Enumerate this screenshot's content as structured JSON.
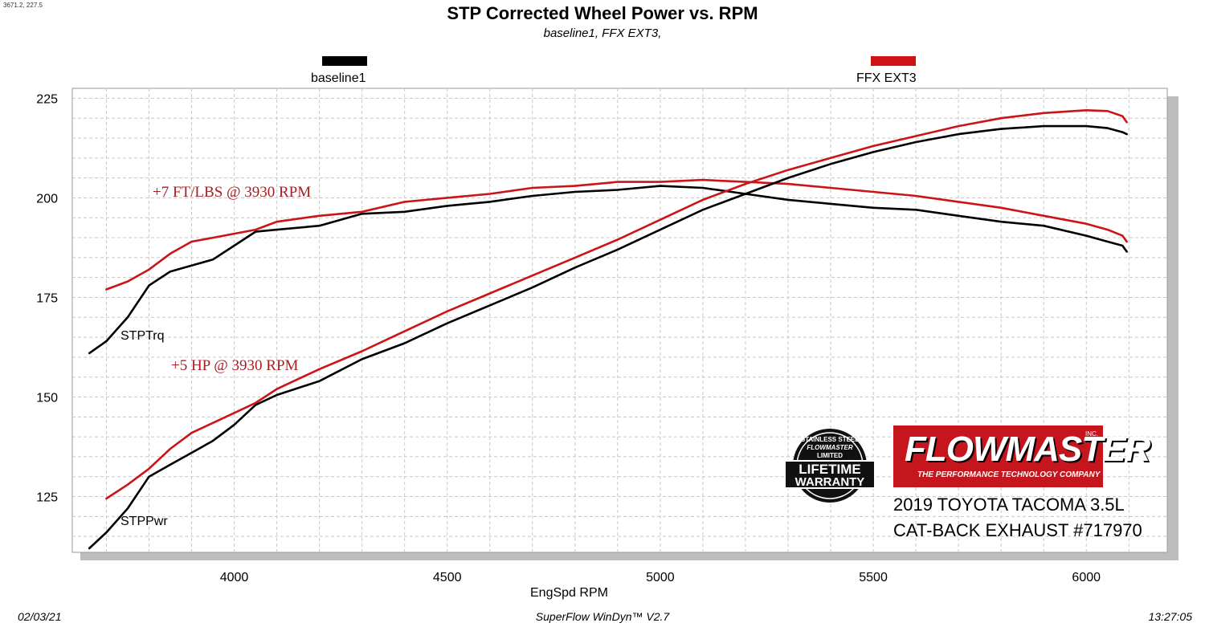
{
  "header": {
    "coords": "3671.2, 227.5",
    "title": "STP Corrected Wheel Power vs. RPM",
    "subtitle": "baseline1, FFX EXT3,"
  },
  "legend": [
    {
      "label": "baseline1",
      "color": "#000000"
    },
    {
      "label": "FFX EXT3",
      "color": "#cc1417"
    }
  ],
  "annotations": {
    "torque_gain": "+7 FT/LBS @ 3930 RPM",
    "power_gain": "+5 HP @ 3930 RPM"
  },
  "series_tags": {
    "torque": "STPTrq",
    "power": "STPPwr"
  },
  "branding": {
    "logo_word": "FLOWMASTER",
    "logo_inc": "INC.",
    "logo_tagline": "THE PERFORMANCE TECHNOLOGY COMPANY",
    "warranty_top": "STAINLESS STEEL",
    "warranty_brand": "FLOWMASTER",
    "warranty_limited": "LIMITED",
    "warranty_line1": "LIFETIME",
    "warranty_line2": "WARRANTY",
    "vehicle_line1": "2019 TOYOTA TACOMA 3.5L",
    "vehicle_line2": "CAT-BACK EXHAUST #717970"
  },
  "footer": {
    "date": "02/03/21",
    "software": "SuperFlow WinDyn™  V2.7",
    "time": "13:27:05"
  },
  "colors": {
    "baseline": "#000000",
    "modified": "#cc1417",
    "annotation": "#a41e22",
    "grid": "#c8c8c8",
    "shadow": "#bdbdbd"
  },
  "chart_data": {
    "type": "line",
    "xlabel": "EngSpd  RPM",
    "ylabel": "",
    "xlim": [
      3620,
      6190
    ],
    "ylim": [
      111,
      227.5
    ],
    "x_ticks": [
      4000,
      4500,
      5000,
      5500,
      6000
    ],
    "y_ticks": [
      125,
      150,
      175,
      200,
      225
    ],
    "grid": true,
    "legend_position": "top",
    "series": [
      {
        "name": "baseline1",
        "metric": "STPTrq",
        "color": "#000000",
        "x": [
          3660,
          3700,
          3750,
          3800,
          3850,
          3900,
          3950,
          4000,
          4050,
          4100,
          4200,
          4300,
          4400,
          4500,
          4600,
          4700,
          4800,
          4900,
          5000,
          5100,
          5200,
          5300,
          5400,
          5500,
          5600,
          5700,
          5800,
          5900,
          6000,
          6050,
          6085,
          6095
        ],
        "y": [
          161,
          164,
          170,
          178,
          181.5,
          183,
          184.5,
          188,
          191.5,
          192,
          193,
          196,
          196.5,
          198,
          199,
          200.5,
          201.5,
          202,
          203,
          202.5,
          201,
          199.5,
          198.5,
          197.5,
          197,
          195.5,
          194,
          193,
          190.5,
          189,
          188,
          186.5
        ]
      },
      {
        "name": "FFX EXT3",
        "metric": "STPTrq",
        "color": "#cc1417",
        "x": [
          3700,
          3750,
          3800,
          3850,
          3900,
          3950,
          4000,
          4050,
          4100,
          4200,
          4300,
          4400,
          4500,
          4600,
          4700,
          4800,
          4900,
          5000,
          5100,
          5200,
          5300,
          5400,
          5500,
          5600,
          5700,
          5800,
          5900,
          6000,
          6050,
          6085,
          6095
        ],
        "y": [
          177,
          179,
          182,
          186,
          189,
          190,
          191,
          192,
          194,
          195.5,
          196.5,
          199,
          200,
          201,
          202.5,
          203,
          204,
          204,
          204.5,
          204,
          203.5,
          202.5,
          201.5,
          200.5,
          199,
          197.5,
          195.5,
          193.5,
          192,
          190.5,
          189
        ]
      },
      {
        "name": "baseline1",
        "metric": "STPPwr",
        "color": "#000000",
        "x": [
          3660,
          3700,
          3750,
          3800,
          3850,
          3900,
          3950,
          4000,
          4050,
          4100,
          4200,
          4300,
          4400,
          4500,
          4600,
          4700,
          4800,
          4900,
          5000,
          5100,
          5200,
          5300,
          5400,
          5500,
          5600,
          5700,
          5800,
          5900,
          6000,
          6050,
          6085,
          6095
        ],
        "y": [
          112,
          116,
          122,
          130,
          133,
          136,
          139,
          143,
          148,
          150.5,
          154,
          159.5,
          163.5,
          168.5,
          173,
          177.5,
          182.5,
          187,
          192,
          197,
          201,
          205,
          208.5,
          211.5,
          214,
          216,
          217.3,
          218,
          218,
          217.5,
          216.5,
          216
        ]
      },
      {
        "name": "FFX EXT3",
        "metric": "STPPwr",
        "color": "#cc1417",
        "x": [
          3700,
          3750,
          3800,
          3850,
          3900,
          3950,
          4000,
          4050,
          4100,
          4200,
          4300,
          4400,
          4500,
          4600,
          4700,
          4800,
          4900,
          5000,
          5100,
          5200,
          5300,
          5400,
          5500,
          5600,
          5700,
          5800,
          5900,
          6000,
          6050,
          6085,
          6095
        ],
        "y": [
          124.5,
          128,
          132,
          137,
          141,
          143.5,
          146,
          148.5,
          152,
          157,
          161.5,
          166.5,
          171.5,
          176,
          180.5,
          185,
          189.5,
          194.5,
          199.5,
          203.5,
          207,
          210,
          213,
          215.5,
          218,
          220,
          221.3,
          222,
          221.8,
          220.5,
          219
        ]
      }
    ]
  }
}
